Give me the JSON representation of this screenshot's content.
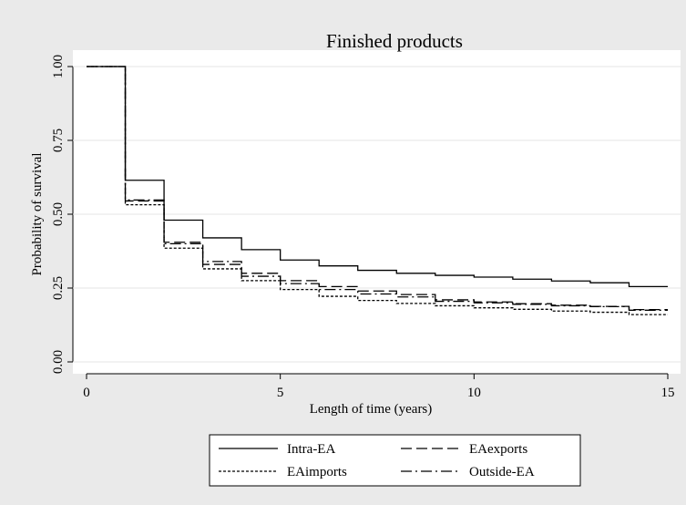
{
  "chart_data": {
    "type": "line",
    "step": "post",
    "title": "Finished products",
    "xlabel": "Length of time (years)",
    "ylabel": "Probability of survival",
    "x": [
      0,
      1,
      2,
      3,
      4,
      5,
      6,
      7,
      8,
      9,
      10,
      11,
      12,
      13,
      14,
      15
    ],
    "series": [
      {
        "name": "Intra-EA",
        "color": "#000000",
        "dash": "solid",
        "values": [
          1,
          0.615,
          0.48,
          0.42,
          0.38,
          0.345,
          0.325,
          0.31,
          0.3,
          0.293,
          0.287,
          0.28,
          0.274,
          0.268,
          0.255,
          0.255
        ]
      },
      {
        "name": "EAexports",
        "color": "#000000",
        "dash": "dashed",
        "values": [
          1,
          0.545,
          0.405,
          0.33,
          0.3,
          0.275,
          0.255,
          0.24,
          0.228,
          0.21,
          0.203,
          0.197,
          0.192,
          0.188,
          0.177,
          0.177
        ]
      },
      {
        "name": "EAimports",
        "color": "#000000",
        "dash": "dotted",
        "values": [
          1,
          0.532,
          0.385,
          0.315,
          0.275,
          0.245,
          0.222,
          0.208,
          0.198,
          0.19,
          0.183,
          0.178,
          0.172,
          0.168,
          0.16,
          0.16
        ]
      },
      {
        "name": "Outside-EA",
        "color": "#000000",
        "dash": "dashdot",
        "values": [
          1,
          0.548,
          0.4,
          0.34,
          0.29,
          0.265,
          0.245,
          0.23,
          0.22,
          0.205,
          0.2,
          0.195,
          0.19,
          0.187,
          0.175,
          0.175
        ]
      }
    ],
    "xlim": [
      0,
      15
    ],
    "xticks": [
      0,
      5,
      10,
      15
    ],
    "ylim": [
      0,
      1
    ],
    "yticks": [
      {
        "value": 0,
        "label": "0.00"
      },
      {
        "value": 0.25,
        "label": "0.25"
      },
      {
        "value": 0.5,
        "label": "0.50"
      },
      {
        "value": 0.75,
        "label": "0.75"
      },
      {
        "value": 1,
        "label": "1.00"
      }
    ],
    "grid": true,
    "legend": "bottom"
  }
}
